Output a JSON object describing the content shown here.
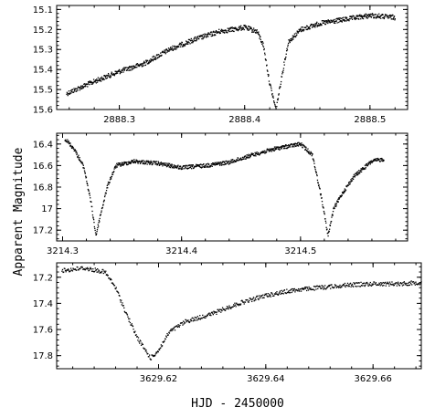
{
  "chart_data": [
    {
      "type": "scatter",
      "title": "",
      "xlabel": "HJD - 2450000",
      "ylabel": "Apparent Magnitude",
      "xlim": [
        2888.25,
        2888.53
      ],
      "ylim": [
        15.6,
        15.08
      ],
      "x_ticks": [
        2888.3,
        2888.4,
        2888.5
      ],
      "x_tick_labels": [
        "2888.3",
        "2888.4",
        "2888.5"
      ],
      "y_ticks": [
        15.1,
        15.2,
        15.3,
        15.4,
        15.5,
        15.6
      ],
      "y_tick_labels": [
        "15.1",
        "15.2",
        "15.3",
        "15.4",
        "15.5",
        "15.6"
      ],
      "x_range_data": [
        2888.258,
        2888.52
      ],
      "light_curve": [
        {
          "x": 2888.258,
          "y": 15.52
        },
        {
          "x": 2888.28,
          "y": 15.46
        },
        {
          "x": 2888.3,
          "y": 15.41
        },
        {
          "x": 2888.32,
          "y": 15.37
        },
        {
          "x": 2888.34,
          "y": 15.3
        },
        {
          "x": 2888.36,
          "y": 15.25
        },
        {
          "x": 2888.38,
          "y": 15.21
        },
        {
          "x": 2888.4,
          "y": 15.19
        },
        {
          "x": 2888.41,
          "y": 15.21
        },
        {
          "x": 2888.415,
          "y": 15.28
        },
        {
          "x": 2888.42,
          "y": 15.47
        },
        {
          "x": 2888.425,
          "y": 15.6
        },
        {
          "x": 2888.43,
          "y": 15.42
        },
        {
          "x": 2888.435,
          "y": 15.26
        },
        {
          "x": 2888.445,
          "y": 15.2
        },
        {
          "x": 2888.46,
          "y": 15.17
        },
        {
          "x": 2888.48,
          "y": 15.15
        },
        {
          "x": 2888.5,
          "y": 15.13
        },
        {
          "x": 2888.52,
          "y": 15.14
        }
      ]
    },
    {
      "type": "scatter",
      "title": "",
      "xlabel": "HJD - 2450000",
      "ylabel": "Apparent Magnitude",
      "xlim": [
        3214.295,
        3214.59
      ],
      "ylim": [
        17.3,
        16.3
      ],
      "x_ticks": [
        3214.3,
        3214.4,
        3214.5
      ],
      "x_tick_labels": [
        "3214.3",
        "3214.4",
        "3214.5"
      ],
      "y_ticks": [
        16.4,
        16.6,
        16.8,
        17.0,
        17.2
      ],
      "y_tick_labels": [
        "16.4",
        "16.6",
        "16.8",
        "17",
        "17.2"
      ],
      "x_range_data": [
        3214.302,
        3214.57
      ],
      "light_curve": [
        {
          "x": 3214.302,
          "y": 16.35
        },
        {
          "x": 3214.31,
          "y": 16.45
        },
        {
          "x": 3214.318,
          "y": 16.62
        },
        {
          "x": 3214.324,
          "y": 16.95
        },
        {
          "x": 3214.328,
          "y": 17.25
        },
        {
          "x": 3214.332,
          "y": 17.05
        },
        {
          "x": 3214.338,
          "y": 16.78
        },
        {
          "x": 3214.345,
          "y": 16.6
        },
        {
          "x": 3214.36,
          "y": 16.56
        },
        {
          "x": 3214.38,
          "y": 16.58
        },
        {
          "x": 3214.4,
          "y": 16.62
        },
        {
          "x": 3214.42,
          "y": 16.6
        },
        {
          "x": 3214.44,
          "y": 16.57
        },
        {
          "x": 3214.46,
          "y": 16.5
        },
        {
          "x": 3214.48,
          "y": 16.44
        },
        {
          "x": 3214.5,
          "y": 16.4
        },
        {
          "x": 3214.51,
          "y": 16.5
        },
        {
          "x": 3214.518,
          "y": 16.92
        },
        {
          "x": 3214.523,
          "y": 17.25
        },
        {
          "x": 3214.528,
          "y": 17.0
        },
        {
          "x": 3214.535,
          "y": 16.86
        },
        {
          "x": 3214.545,
          "y": 16.7
        },
        {
          "x": 3214.56,
          "y": 16.56
        },
        {
          "x": 3214.57,
          "y": 16.54
        }
      ]
    },
    {
      "type": "scatter",
      "title": "",
      "xlabel": "HJD - 2450000",
      "ylabel": "Apparent Magnitude",
      "xlim": [
        3629.601,
        3629.669
      ],
      "ylim": [
        17.9,
        17.09
      ],
      "x_ticks": [
        3629.62,
        3629.64,
        3629.66
      ],
      "x_tick_labels": [
        "3629.62",
        "3629.64",
        "3629.66"
      ],
      "y_ticks": [
        17.2,
        17.4,
        17.6,
        17.8
      ],
      "y_tick_labels": [
        "17.2",
        "17.4",
        "17.6",
        "17.8"
      ],
      "x_range_data": [
        3629.602,
        3629.669
      ],
      "light_curve": [
        {
          "x": 3629.602,
          "y": 17.15
        },
        {
          "x": 3629.606,
          "y": 17.13
        },
        {
          "x": 3629.61,
          "y": 17.16
        },
        {
          "x": 3629.612,
          "y": 17.28
        },
        {
          "x": 3629.614,
          "y": 17.48
        },
        {
          "x": 3629.616,
          "y": 17.66
        },
        {
          "x": 3629.6185,
          "y": 17.82
        },
        {
          "x": 3629.62,
          "y": 17.76
        },
        {
          "x": 3629.622,
          "y": 17.62
        },
        {
          "x": 3629.625,
          "y": 17.54
        },
        {
          "x": 3629.63,
          "y": 17.48
        },
        {
          "x": 3629.635,
          "y": 17.4
        },
        {
          "x": 3629.64,
          "y": 17.34
        },
        {
          "x": 3629.645,
          "y": 17.3
        },
        {
          "x": 3629.65,
          "y": 17.28
        },
        {
          "x": 3629.655,
          "y": 17.26
        },
        {
          "x": 3629.66,
          "y": 17.25
        },
        {
          "x": 3629.665,
          "y": 17.25
        },
        {
          "x": 3629.669,
          "y": 17.24
        }
      ]
    }
  ],
  "axes": {
    "ylabel": "Apparent Magnitude",
    "xlabel": "HJD - 2450000"
  }
}
